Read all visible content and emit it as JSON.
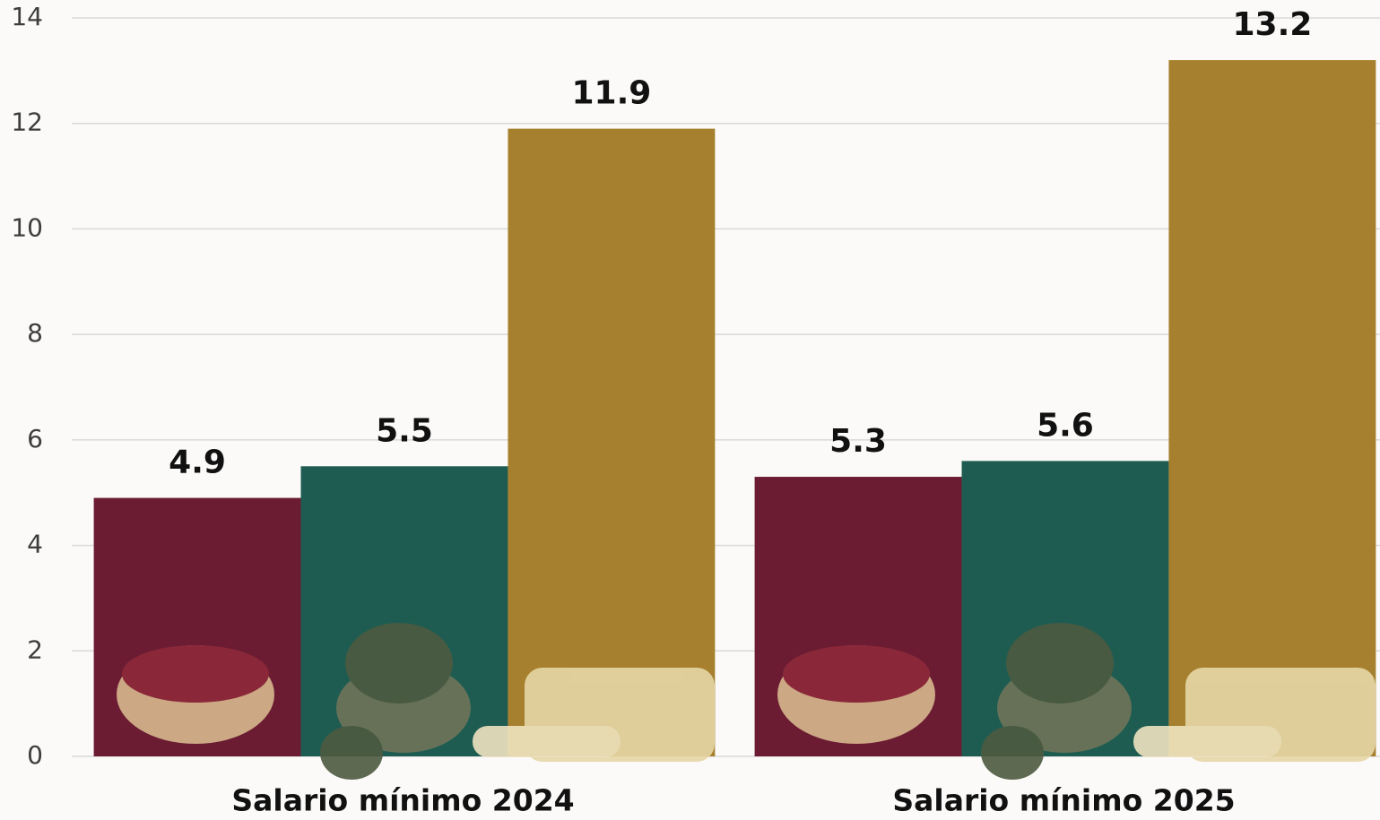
{
  "chart_data": {
    "type": "bar",
    "categories": [
      "Salario mínimo 2024",
      "Salario mínimo 2025"
    ],
    "series": [
      {
        "color": "#6b1c33",
        "values": [
          4.9,
          5.3
        ]
      },
      {
        "color": "#1e5c52",
        "values": [
          5.5,
          5.6
        ]
      },
      {
        "color": "#a6802e",
        "values": [
          11.9,
          13.2
        ]
      }
    ],
    "ylim": [
      0,
      14
    ],
    "yticks": [
      0,
      2,
      4,
      6,
      8,
      10,
      12,
      14
    ],
    "grid": true
  }
}
